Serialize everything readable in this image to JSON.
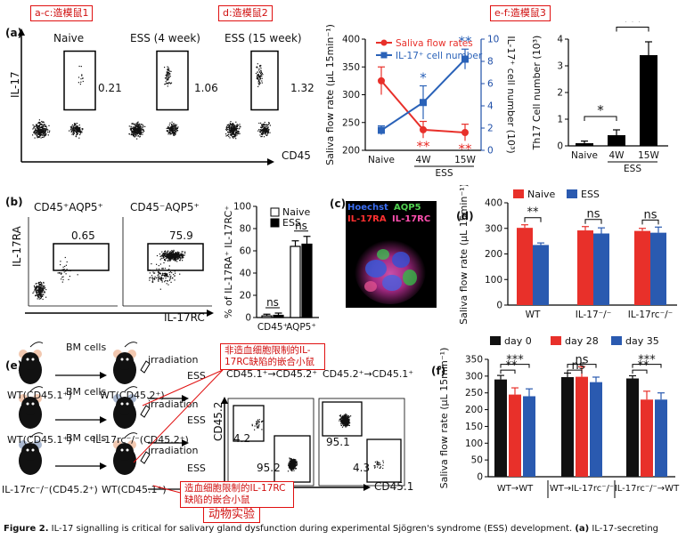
{
  "annotations": {
    "a_c": "a-c:造模鼠1",
    "d": "d:造模鼠2",
    "e_f": "e-f:造模鼠3",
    "non_hemat": "非造血细胞限制的IL-17RC缺陷的嵌合小鼠",
    "hemat": "造血细胞限制的IL-17RC缺陷的嵌合小鼠",
    "animal": "动物实验"
  },
  "panel_a": {
    "label": "(a)",
    "flow_titles": [
      "Naive",
      "ESS (4 week)",
      "ESS (15 week)"
    ],
    "flow_values": [
      "0.21",
      "1.06",
      "1.32"
    ],
    "y_axis": "IL-17",
    "x_axis": "CD45"
  },
  "panel_b": {
    "label": "(b)",
    "flow_titles": [
      "CD45⁺AQP5⁺",
      "CD45⁻AQP5⁺"
    ],
    "flow_values": [
      "0.65",
      "75.9"
    ],
    "y_axis": "IL-17RA",
    "x_axis": "IL-17RC"
  },
  "panel_c": {
    "label": "(c)",
    "stains": [
      "Hoechst",
      "AQP5",
      "IL-17RA",
      "IL-17RC"
    ]
  },
  "panel_d": {
    "label": "(d)"
  },
  "panel_e": {
    "label": "(e)",
    "bm_cells": "BM cells",
    "irradiation": "irradiation",
    "ess": "ESS",
    "donors": [
      "WT(CD45.1⁺)",
      "WT(CD45.1⁺)",
      "IL-17rc⁻/⁻(CD45.2⁺)"
    ],
    "recipients": [
      "WT(CD45.2⁺)",
      "IL-17rc⁻/⁻(CD45.2⁺)",
      "WT(CD45.1⁺)"
    ],
    "flow_header_1": "CD45.1⁺→CD45.2⁺",
    "flow_header_2": "CD45.2⁺→CD45.1⁺",
    "flow_values_1": [
      "4.2",
      "95.2"
    ],
    "flow_values_2": [
      "95.1",
      "4.3"
    ],
    "y_axis": "CD45.2",
    "x_axis": "CD45.1"
  },
  "panel_f": {
    "label": "(f)"
  },
  "caption": {
    "figure": "Figure 2.",
    "text": " IL-17 signalling is critical for salivary gland dysfunction during experimental Sjögren's syndrome (ESS) development. ",
    "panel": "(a)",
    "tail": " IL-17-secreting"
  },
  "chart_data": [
    {
      "id": "a-saliva",
      "type": "line",
      "categories": [
        "Naive",
        "4W",
        "15W"
      ],
      "group_label": "ESS",
      "series": [
        {
          "name": "Saliva flow rates",
          "color": "#e8302a",
          "axis": "left",
          "values": [
            325,
            237,
            232
          ],
          "errors": [
            25,
            15,
            15
          ]
        },
        {
          "name": "IL-17⁺ cell number",
          "color": "#2a62b8",
          "axis": "right",
          "values": [
            1.8,
            4.3,
            8.2
          ],
          "errors": [
            0.4,
            1.5,
            0.9
          ]
        }
      ],
      "ylabel": "Saliva flow rate (μL 15min⁻¹)",
      "y2label": "IL-17⁺ cell number (10³)",
      "ylim": [
        200,
        400
      ],
      "y2lim": [
        0,
        10
      ],
      "yticks": [
        200,
        250,
        300,
        350,
        400
      ],
      "y2ticks": [
        0,
        2,
        4,
        6,
        8,
        10
      ],
      "stars_blue": [
        "*",
        "**"
      ],
      "stars_red": [
        "**",
        "**"
      ]
    },
    {
      "id": "a-th17",
      "type": "bar",
      "categories": [
        "Naive",
        "4W",
        "15W"
      ],
      "group_label": "ESS",
      "values": [
        0.1,
        0.4,
        3.4
      ],
      "errors": [
        0.08,
        0.2,
        0.5
      ],
      "ylabel": "Th17 Cell number (10³)",
      "ylim": [
        0,
        4
      ],
      "yticks": [
        0,
        1,
        2,
        3,
        4
      ],
      "stars": [
        "*",
        "***",
        "***"
      ]
    },
    {
      "id": "b-percent",
      "type": "bar",
      "categories": [
        "CD45⁺",
        "AQP5⁺"
      ],
      "series": [
        {
          "name": "Naive",
          "values": [
            1.5,
            64
          ],
          "errors": [
            1.5,
            5
          ]
        },
        {
          "name": "ESS",
          "values": [
            2,
            66
          ],
          "errors": [
            2,
            7
          ]
        }
      ],
      "ylabel": "% of IL-17RA⁺ IL-17RC⁺",
      "ylim": [
        0,
        100
      ],
      "yticks": [
        0,
        20,
        40,
        60,
        80,
        100
      ],
      "annotations": [
        "ns",
        "ns"
      ]
    },
    {
      "id": "d-saliva",
      "type": "bar",
      "categories": [
        "WT",
        "IL-17⁻/⁻",
        "IL-17rc⁻/⁻"
      ],
      "series": [
        {
          "name": "Naive",
          "color": "#e8302a",
          "values": [
            302,
            292,
            290
          ],
          "errors": [
            12,
            15,
            10
          ]
        },
        {
          "name": "ESS",
          "color": "#2a5ab0",
          "values": [
            235,
            280,
            283
          ],
          "errors": [
            8,
            22,
            22
          ]
        }
      ],
      "ylabel": "Saliva flow rate (μL 15min⁻¹)",
      "ylim": [
        0,
        400
      ],
      "yticks": [
        0,
        100,
        200,
        300,
        400
      ],
      "annotations": [
        "**",
        "ns",
        "ns"
      ]
    },
    {
      "id": "f-saliva",
      "type": "bar",
      "categories": [
        "WT→WT",
        "WT→IL-17rc⁻/⁻",
        "IL-17rc⁻/⁻→WT"
      ],
      "series": [
        {
          "name": "day 0",
          "color": "#111111",
          "values": [
            290,
            297,
            293
          ],
          "errors": [
            12,
            12,
            8
          ]
        },
        {
          "name": "day 28",
          "color": "#e8302a",
          "values": [
            245,
            298,
            230
          ],
          "errors": [
            20,
            30,
            25
          ]
        },
        {
          "name": "day 35",
          "color": "#2a5ab0",
          "values": [
            240,
            282,
            230
          ],
          "errors": [
            22,
            15,
            20
          ]
        }
      ],
      "ylabel": "Saliva flow rate (μL 15min⁻¹)",
      "ylim": [
        0,
        350
      ],
      "yticks": [
        0,
        50,
        100,
        150,
        200,
        250,
        300,
        350
      ],
      "annotations": [
        [
          "**",
          "***"
        ],
        [
          "ns",
          "ns"
        ],
        [
          "**",
          "***"
        ]
      ]
    }
  ]
}
